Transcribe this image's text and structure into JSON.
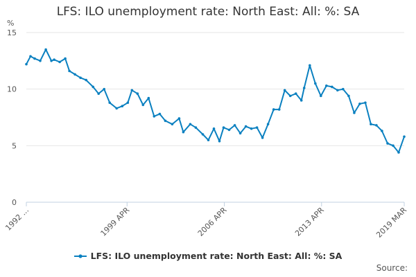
{
  "chart_data": {
    "type": "line",
    "title": "LFS: ILO unemployment rate: North East: All: %: SA",
    "ylabel": "%",
    "xlabel": "",
    "ylim": [
      0,
      15
    ],
    "yticks": [
      0,
      5,
      10,
      15
    ],
    "xticks": [
      "1992 ...",
      "1999 APR",
      "2006 APR",
      "2013 APR",
      "2019 MAR"
    ],
    "x_range": [
      "1992",
      "2019 MAR"
    ],
    "grid": "horizontal",
    "legend_position": "bottom",
    "series": [
      {
        "name": "LFS: ILO unemployment rate: North East: All: %: SA",
        "color": "#0a80c0",
        "x": [
          1992.0,
          1992.3,
          1992.6,
          1993.0,
          1993.4,
          1993.8,
          1994.0,
          1994.4,
          1994.8,
          1995.1,
          1995.5,
          1995.9,
          1996.3,
          1996.8,
          1997.2,
          1997.6,
          1998.0,
          1998.5,
          1998.9,
          1999.3,
          1999.6,
          2000.0,
          2000.4,
          2000.8,
          2001.2,
          2001.6,
          2002.0,
          2002.5,
          2003.0,
          2003.3,
          2003.8,
          2004.2,
          2004.7,
          2005.1,
          2005.5,
          2005.9,
          2006.2,
          2006.6,
          2007.0,
          2007.4,
          2007.8,
          2008.2,
          2008.6,
          2009.0,
          2009.4,
          2009.8,
          2010.2,
          2010.6,
          2011.0,
          2011.4,
          2011.8,
          2012.0,
          2012.4,
          2012.8,
          2013.2,
          2013.6,
          2014.0,
          2014.4,
          2014.8,
          2015.2,
          2015.6,
          2016.0,
          2016.4,
          2016.8,
          2017.2,
          2017.6,
          2018.0,
          2018.4,
          2018.8,
          2019.2
        ],
        "values": [
          12.2,
          12.9,
          12.7,
          12.5,
          13.5,
          12.5,
          12.6,
          12.4,
          12.7,
          11.6,
          11.3,
          11.0,
          10.8,
          10.2,
          9.6,
          10.0,
          8.8,
          8.3,
          8.5,
          8.8,
          9.9,
          9.6,
          8.6,
          9.2,
          7.6,
          7.8,
          7.2,
          6.9,
          7.4,
          6.2,
          6.9,
          6.6,
          6.0,
          5.5,
          6.5,
          5.4,
          6.6,
          6.4,
          6.8,
          6.1,
          6.7,
          6.5,
          6.6,
          5.7,
          6.9,
          8.2,
          8.2,
          9.9,
          9.4,
          9.6,
          9.0,
          10.1,
          12.1,
          10.5,
          9.4,
          10.3,
          10.2,
          9.9,
          10.0,
          9.4,
          7.9,
          8.7,
          8.8,
          6.9,
          6.8,
          6.3,
          5.2,
          5.0,
          4.4,
          5.8
        ]
      }
    ]
  },
  "source_label": "Source:"
}
